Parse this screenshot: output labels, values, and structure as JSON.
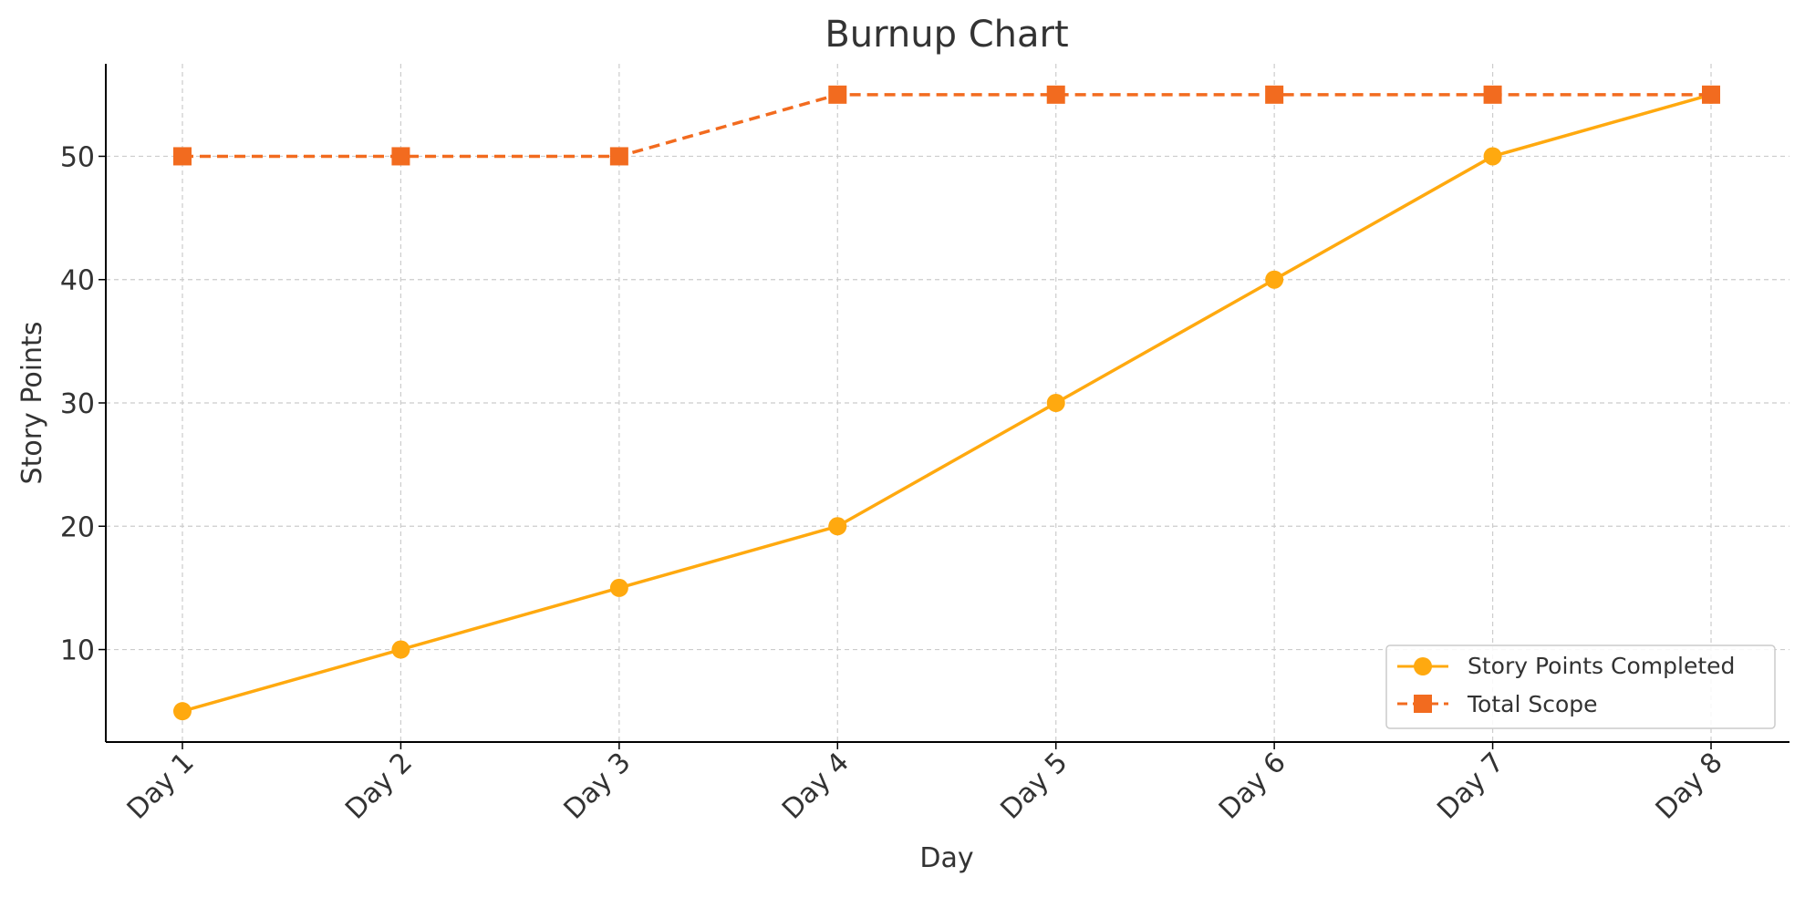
{
  "chart_data": {
    "type": "line",
    "title": "Burnup Chart",
    "xlabel": "Day",
    "ylabel": "Story Points",
    "categories": [
      "Day 1",
      "Day 2",
      "Day 3",
      "Day 4",
      "Day 5",
      "Day 6",
      "Day 7",
      "Day 8"
    ],
    "series": [
      {
        "name": "Story Points Completed",
        "values": [
          5,
          10,
          15,
          20,
          30,
          40,
          50,
          55
        ],
        "color": "#FFA90F",
        "marker": "circle",
        "line_style": "solid"
      },
      {
        "name": "Total Scope",
        "values": [
          50,
          50,
          50,
          55,
          55,
          55,
          55,
          55
        ],
        "color": "#F26B1F",
        "marker": "square",
        "line_style": "dashed"
      }
    ],
    "yticks": [
      10,
      20,
      30,
      40,
      50
    ],
    "ylim": [
      2.5,
      57.5
    ],
    "grid": true,
    "legend_position": "lower-right",
    "x_tick_rotation": 45
  },
  "colors": {
    "text": "#333333",
    "axis": "#000000",
    "grid": "#cccccc",
    "legend_border": "#cccccc"
  }
}
